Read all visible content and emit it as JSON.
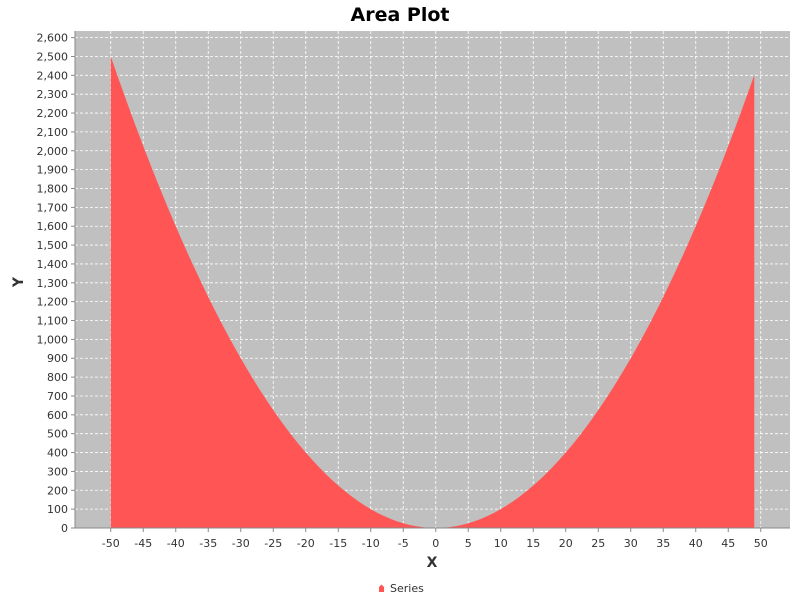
{
  "chart_data": {
    "type": "area",
    "title": "Area Plot",
    "xlabel": "X",
    "ylabel": "Y",
    "xlim": [
      -55.5,
      54.5
    ],
    "ylim": [
      0,
      2635
    ],
    "x_ticks": [
      -50,
      -45,
      -40,
      -35,
      -30,
      -25,
      -20,
      -15,
      -10,
      -5,
      0,
      5,
      10,
      15,
      20,
      25,
      30,
      35,
      40,
      45,
      50
    ],
    "x_tick_labels": [
      "-50",
      "-45",
      "-40",
      "-35",
      "-30",
      "-25",
      "-20",
      "-15",
      "-10",
      "-5",
      "0",
      "5",
      "10",
      "15",
      "20",
      "25",
      "30",
      "35",
      "40",
      "45",
      "50"
    ],
    "y_ticks": [
      0,
      100,
      200,
      300,
      400,
      500,
      600,
      700,
      800,
      900,
      1000,
      1100,
      1200,
      1300,
      1400,
      1500,
      1600,
      1700,
      1800,
      1900,
      2000,
      2100,
      2200,
      2300,
      2400,
      2500,
      2600
    ],
    "y_tick_labels": [
      "0",
      "100",
      "200",
      "300",
      "400",
      "500",
      "600",
      "700",
      "800",
      "900",
      "1,000",
      "1,100",
      "1,200",
      "1,300",
      "1,400",
      "1,500",
      "1,600",
      "1,700",
      "1,800",
      "1,900",
      "2,000",
      "2,100",
      "2,200",
      "2,300",
      "2,400",
      "2,500",
      "2,600"
    ],
    "grid": true,
    "legend_position": "bottom-center",
    "background_color": "#c0c0c0",
    "grid_color": "#ffffff",
    "series": [
      {
        "name": "Series",
        "color": "#ff5555",
        "x": [
          -50,
          -49,
          -48,
          -47,
          -46,
          -45,
          -44,
          -43,
          -42,
          -41,
          -40,
          -39,
          -38,
          -37,
          -36,
          -35,
          -34,
          -33,
          -32,
          -31,
          -30,
          -29,
          -28,
          -27,
          -26,
          -25,
          -24,
          -23,
          -22,
          -21,
          -20,
          -19,
          -18,
          -17,
          -16,
          -15,
          -14,
          -13,
          -12,
          -11,
          -10,
          -9,
          -8,
          -7,
          -6,
          -5,
          -4,
          -3,
          -2,
          -1,
          0,
          1,
          2,
          3,
          4,
          5,
          6,
          7,
          8,
          9,
          10,
          11,
          12,
          13,
          14,
          15,
          16,
          17,
          18,
          19,
          20,
          21,
          22,
          23,
          24,
          25,
          26,
          27,
          28,
          29,
          30,
          31,
          32,
          33,
          34,
          35,
          36,
          37,
          38,
          39,
          40,
          41,
          42,
          43,
          44,
          45,
          46,
          47,
          48,
          49
        ],
        "y": [
          2500,
          2401,
          2304,
          2209,
          2116,
          2025,
          1936,
          1849,
          1764,
          1681,
          1600,
          1521,
          1444,
          1369,
          1296,
          1225,
          1156,
          1089,
          1024,
          961,
          900,
          841,
          784,
          729,
          676,
          625,
          576,
          529,
          484,
          441,
          400,
          361,
          324,
          289,
          256,
          225,
          196,
          169,
          144,
          121,
          100,
          81,
          64,
          49,
          36,
          25,
          16,
          9,
          4,
          1,
          0,
          1,
          4,
          9,
          16,
          25,
          36,
          49,
          64,
          81,
          100,
          121,
          144,
          169,
          196,
          225,
          256,
          289,
          324,
          361,
          400,
          441,
          484,
          529,
          576,
          625,
          676,
          729,
          784,
          841,
          900,
          961,
          1024,
          1089,
          1156,
          1225,
          1296,
          1369,
          1444,
          1521,
          1600,
          1681,
          1764,
          1849,
          1936,
          2025,
          2116,
          2209,
          2304,
          2401
        ]
      }
    ]
  }
}
